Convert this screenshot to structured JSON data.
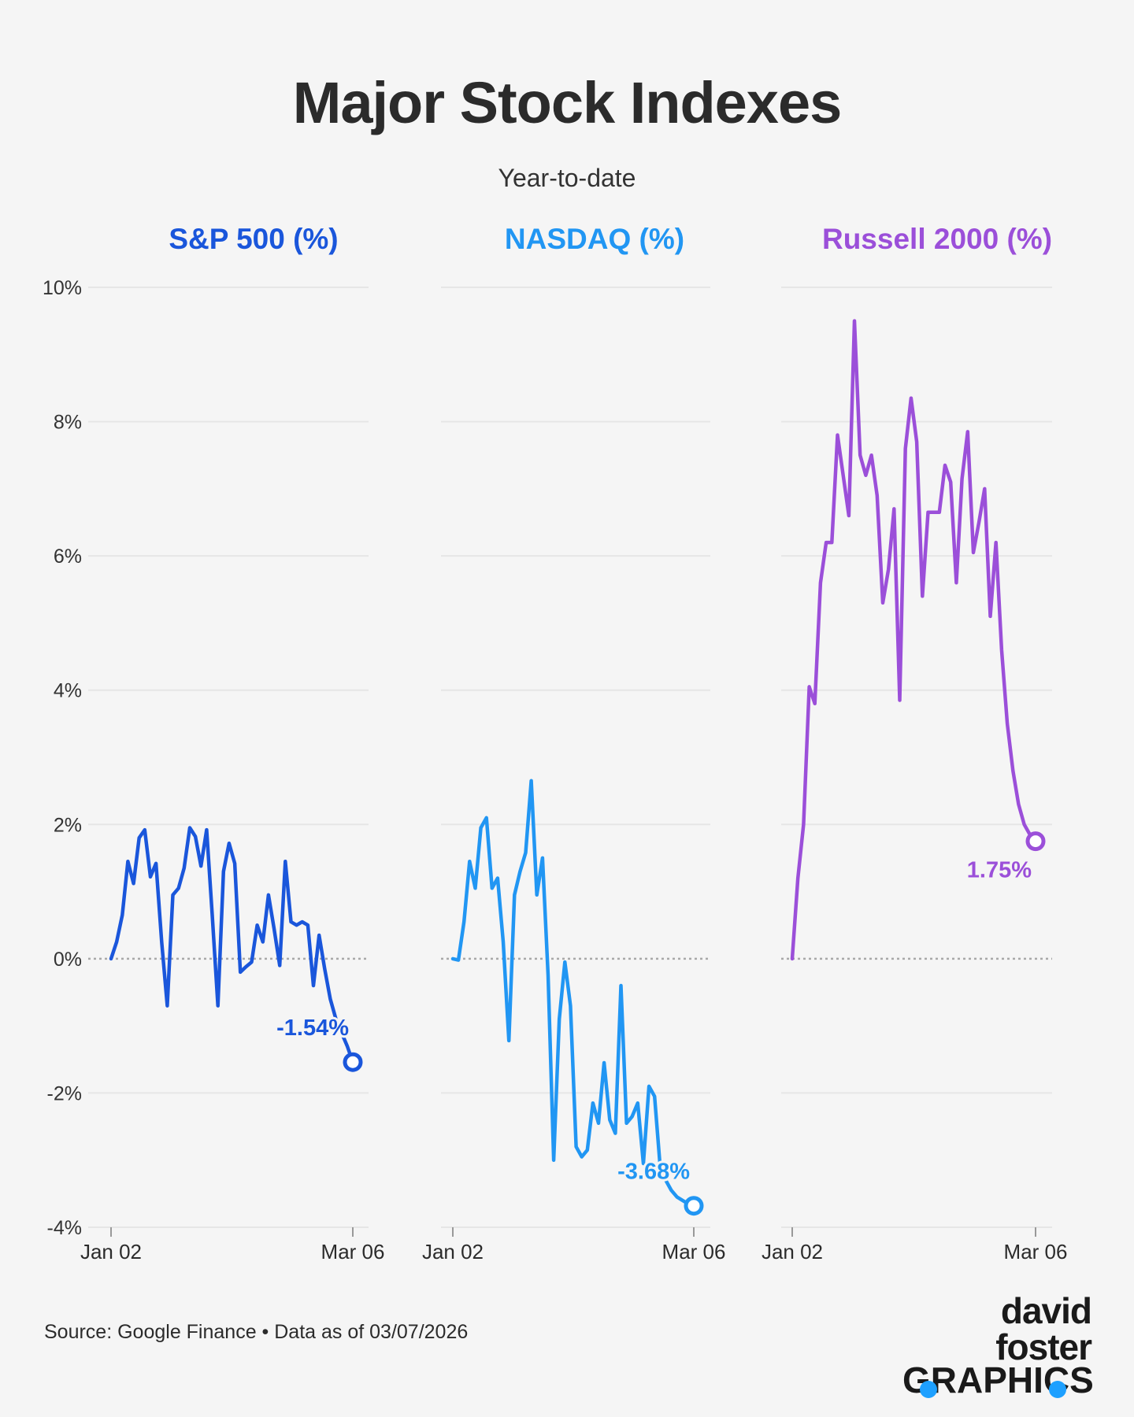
{
  "header": {
    "title": "Major Stock Indexes",
    "subtitle": "Year-to-date"
  },
  "footer": {
    "source": "Source: Google Finance • Data as of 03/07/2026"
  },
  "logo": {
    "line1": "david foster",
    "line2": "GRAPHICS",
    "accent_color": "#1ea0ff"
  },
  "chart_data": {
    "type": "line",
    "ylim": [
      -4,
      10
    ],
    "yticks": [
      -4,
      -2,
      0,
      2,
      4,
      6,
      8,
      10
    ],
    "ytick_labels": [
      "-4%",
      "-2%",
      "0%",
      "2%",
      "4%",
      "6%",
      "8%",
      "10%"
    ],
    "x_tick_labels": [
      "Jan 02",
      "Mar 06"
    ],
    "x_domain": [
      0,
      43
    ],
    "series": [
      {
        "name": "S&P 500 (%)",
        "color": "#1a56db",
        "end_label": "-1.54%",
        "end_value": -1.54,
        "x": [
          0,
          1,
          2,
          3,
          4,
          5,
          6,
          7,
          8,
          9,
          10,
          11,
          12,
          13,
          14,
          15,
          16,
          17,
          18,
          19,
          20,
          21,
          22,
          23,
          24,
          25,
          26,
          27,
          28,
          29,
          30,
          31,
          32,
          33,
          34,
          35,
          36,
          37,
          38,
          39,
          40,
          41,
          42,
          43
        ],
        "values": [
          0.0,
          0.25,
          0.65,
          1.45,
          1.12,
          1.8,
          1.92,
          1.22,
          1.42,
          0.25,
          -0.7,
          0.95,
          1.05,
          1.35,
          1.95,
          1.82,
          1.38,
          1.92,
          0.65,
          -0.7,
          1.3,
          1.72,
          1.42,
          -0.2,
          -0.12,
          -0.05,
          0.5,
          0.25,
          0.95,
          0.45,
          -0.1,
          1.45,
          0.55,
          0.5,
          0.55,
          0.5,
          -0.4,
          0.35,
          -0.15,
          -0.6,
          -0.9,
          -1.1,
          -1.3,
          -1.54
        ]
      },
      {
        "name": "NASDAQ (%)",
        "color": "#2196f3",
        "end_label": "-3.68%",
        "end_value": -3.68,
        "x": [
          0,
          1,
          2,
          3,
          4,
          5,
          6,
          7,
          8,
          9,
          10,
          11,
          12,
          13,
          14,
          15,
          16,
          17,
          18,
          19,
          20,
          21,
          22,
          23,
          24,
          25,
          26,
          27,
          28,
          29,
          30,
          31,
          32,
          33,
          34,
          35,
          36,
          37,
          38,
          39,
          40,
          41,
          42,
          43
        ],
        "values": [
          0.0,
          -0.02,
          0.55,
          1.45,
          1.05,
          1.95,
          2.1,
          1.05,
          1.2,
          0.25,
          -1.22,
          0.95,
          1.3,
          1.58,
          2.65,
          0.95,
          1.5,
          -0.25,
          -3.0,
          -0.9,
          -0.05,
          -0.7,
          -2.8,
          -2.95,
          -2.85,
          -2.15,
          -2.45,
          -1.55,
          -2.4,
          -2.6,
          -0.4,
          -2.45,
          -2.35,
          -2.15,
          -3.05,
          -1.9,
          -2.05,
          -3.1,
          -3.3,
          -3.45,
          -3.55,
          -3.6,
          -3.65,
          -3.68
        ]
      },
      {
        "name": "Russell 2000 (%)",
        "color": "#9b4fd9",
        "end_label": "1.75%",
        "end_value": 1.75,
        "x": [
          0,
          1,
          2,
          3,
          4,
          5,
          6,
          7,
          8,
          9,
          10,
          11,
          12,
          13,
          14,
          15,
          16,
          17,
          18,
          19,
          20,
          21,
          22,
          23,
          24,
          25,
          26,
          27,
          28,
          29,
          30,
          31,
          32,
          33,
          34,
          35,
          36,
          37,
          38,
          39,
          40,
          41,
          42,
          43
        ],
        "values": [
          0.0,
          1.2,
          2.0,
          4.05,
          3.8,
          5.6,
          6.2,
          6.2,
          7.8,
          7.2,
          6.6,
          9.5,
          7.5,
          7.2,
          7.5,
          6.9,
          5.3,
          5.8,
          6.7,
          3.85,
          7.6,
          8.35,
          7.7,
          5.4,
          6.65,
          6.65,
          6.65,
          7.35,
          7.1,
          5.6,
          7.15,
          7.85,
          6.05,
          6.5,
          7.0,
          5.1,
          6.2,
          4.6,
          3.5,
          2.8,
          2.3,
          2.0,
          1.85,
          1.75
        ]
      }
    ]
  }
}
